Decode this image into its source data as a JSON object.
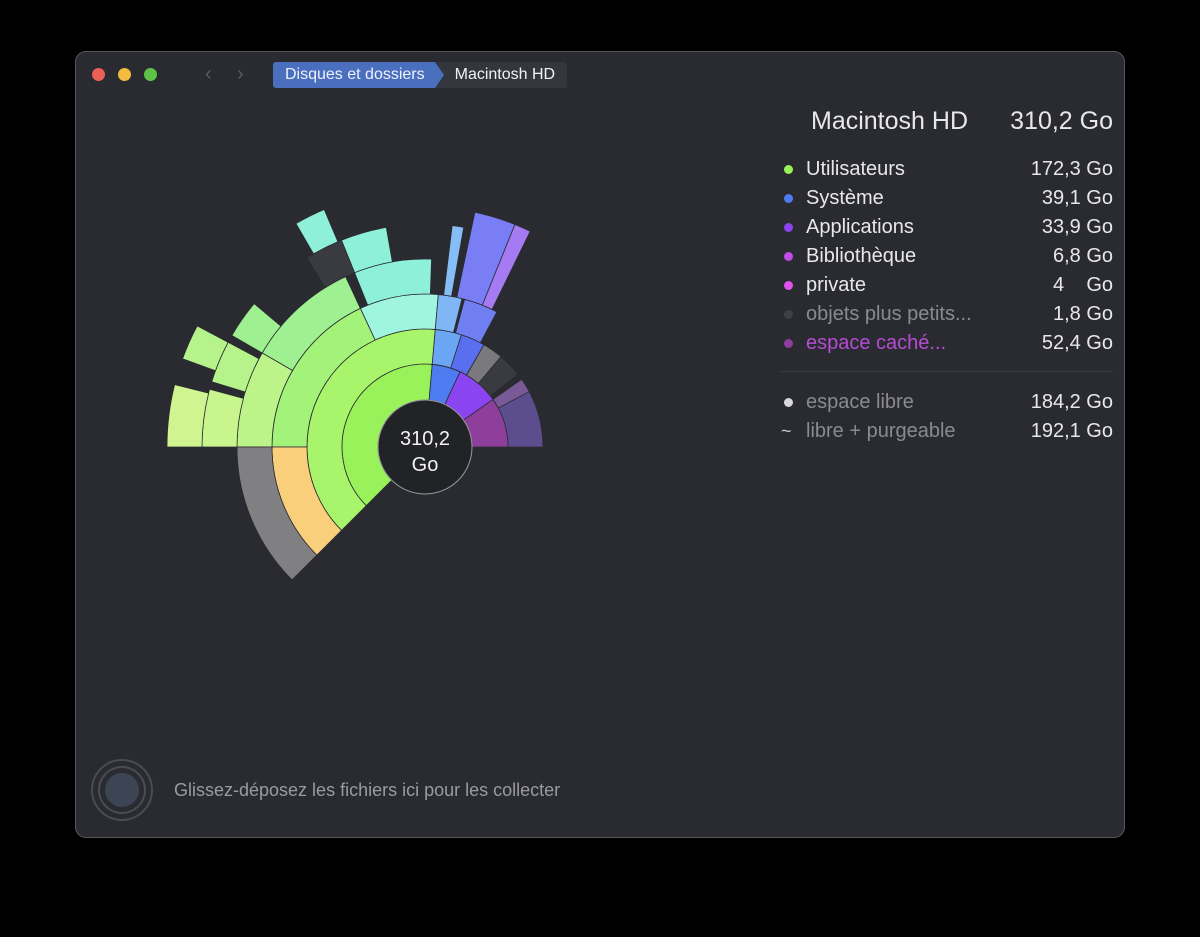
{
  "window": {
    "traffic_lights": [
      "close",
      "minimize",
      "zoom"
    ],
    "nav": {
      "back_icon": "‹",
      "forward_icon": "›"
    },
    "breadcrumb": [
      "Disques et dossiers",
      "Macintosh HD"
    ]
  },
  "legend": {
    "title": "Macintosh HD",
    "total": "310,2 Go",
    "items": [
      {
        "label": "Utilisateurs",
        "value": "172,3 Go",
        "color": "#9af25a",
        "dim": false
      },
      {
        "label": "Système",
        "value": "39,1 Go",
        "color": "#4d7cf0",
        "dim": false
      },
      {
        "label": "Applications",
        "value": "33,9 Go",
        "color": "#8a45f0",
        "dim": false
      },
      {
        "label": "Bibliothèque",
        "value": "6,8 Go",
        "color": "#c24ce6",
        "dim": false
      },
      {
        "label": "private",
        "value": "4    Go",
        "color": "#e052ee",
        "dim": false
      },
      {
        "label": "objets plus petits...",
        "value": "1,8 Go",
        "color": "#3f4046",
        "dim": true
      },
      {
        "label": "espace caché...",
        "value": "52,4 Go",
        "color": "#8e3f9c",
        "dim": false,
        "label_color": "#b44cd6"
      }
    ],
    "free": [
      {
        "label": "espace libre",
        "value": "184,2 Go",
        "marker": "dot",
        "color": "#d8d8dc"
      },
      {
        "label": "libre + purgeable",
        "value": "192,1 Go",
        "marker": "~"
      }
    ]
  },
  "center": {
    "line1": "310,2",
    "line2": "Go"
  },
  "drop_zone": {
    "text": "Glissez-déposez les fichiers ici pour les collecter"
  },
  "chart_data": {
    "type": "sunburst",
    "title": "Macintosh HD",
    "total": "310,2 Go",
    "center": [
      425,
      447
    ],
    "hole_radius": 47,
    "segments": [
      {
        "name": "Utilisateurs",
        "r0": 47,
        "r1": 83,
        "a0": 85,
        "a1": 225,
        "color": "#9af25a"
      },
      {
        "name": "Utilisateurs-2",
        "r0": 83,
        "r1": 118,
        "a0": 85,
        "a1": 225,
        "color": "#a8f46a"
      },
      {
        "name": "u3a",
        "r0": 118,
        "r1": 153,
        "a0": 85,
        "a1": 115,
        "color": "#9ff5e0"
      },
      {
        "name": "u3b",
        "r0": 118,
        "r1": 153,
        "a0": 115,
        "a1": 180,
        "color": "#a3f27a"
      },
      {
        "name": "u3c",
        "r0": 118,
        "r1": 153,
        "a0": 180,
        "a1": 225,
        "color": "#f9cf7c"
      },
      {
        "name": "u4a",
        "r0": 153,
        "r1": 188,
        "a0": 88,
        "a1": 112,
        "color": "#8ff0da"
      },
      {
        "name": "u4b",
        "r0": 153,
        "r1": 188,
        "a0": 115,
        "a1": 150,
        "color": "#9ef090"
      },
      {
        "name": "u4c",
        "r0": 153,
        "r1": 188,
        "a0": 150,
        "a1": 180,
        "color": "#bdf48a"
      },
      {
        "name": "u4d",
        "r0": 153,
        "r1": 188,
        "a0": 180,
        "a1": 225,
        "color": "#808083"
      },
      {
        "name": "u5a",
        "r0": 188,
        "r1": 223,
        "a0": 100,
        "a1": 112,
        "color": "#8ff0da"
      },
      {
        "name": "u5b",
        "r0": 188,
        "r1": 223,
        "a0": 112,
        "a1": 122,
        "color": "#3a3b40"
      },
      {
        "name": "u5c",
        "r0": 188,
        "r1": 223,
        "a0": 140,
        "a1": 150,
        "color": "#9ef090"
      },
      {
        "name": "u5d",
        "r0": 188,
        "r1": 223,
        "a0": 152,
        "a1": 163,
        "color": "#b6f38a"
      },
      {
        "name": "u5e",
        "r0": 188,
        "r1": 223,
        "a0": 165,
        "a1": 180,
        "color": "#c9f58f"
      },
      {
        "name": "u6a",
        "r0": 223,
        "r1": 258,
        "a0": 113,
        "a1": 120,
        "color": "#8ff0da"
      },
      {
        "name": "u6b",
        "r0": 223,
        "r1": 258,
        "a0": 152,
        "a1": 160,
        "color": "#b6f38a"
      },
      {
        "name": "u6c",
        "r0": 223,
        "r1": 258,
        "a0": 166,
        "a1": 180,
        "color": "#d0f590"
      },
      {
        "name": "Système",
        "r0": 47,
        "r1": 83,
        "a0": 65,
        "a1": 85,
        "color": "#4d7cf0"
      },
      {
        "name": "sys2a",
        "r0": 83,
        "r1": 118,
        "a0": 72,
        "a1": 85,
        "color": "#6aa6f4"
      },
      {
        "name": "sys2b",
        "r0": 83,
        "r1": 118,
        "a0": 60,
        "a1": 72,
        "color": "#5a6ef0"
      },
      {
        "name": "sys3a",
        "r0": 118,
        "r1": 153,
        "a0": 76,
        "a1": 85,
        "color": "#7eb6f6"
      },
      {
        "name": "sys3b",
        "r0": 118,
        "r1": 153,
        "a0": 62,
        "a1": 75,
        "color": "#6f7ff2"
      },
      {
        "name": "sys4a",
        "r0": 153,
        "r1": 223,
        "a0": 80,
        "a1": 83,
        "color": "#86bdf7"
      },
      {
        "name": "sys4b",
        "r0": 153,
        "r1": 240,
        "a0": 68,
        "a1": 78,
        "color": "#7a7ef4"
      },
      {
        "name": "sys4c",
        "r0": 153,
        "r1": 240,
        "a0": 64,
        "a1": 68,
        "color": "#a67af2"
      },
      {
        "name": "Applications",
        "r0": 47,
        "r1": 83,
        "a0": 35,
        "a1": 65,
        "color": "#8a45f0"
      },
      {
        "name": "app2",
        "r0": 83,
        "r1": 118,
        "a0": 38,
        "a1": 60,
        "color": "#3a3b40"
      },
      {
        "name": "app2g",
        "r0": 83,
        "r1": 118,
        "a0": 50,
        "a1": 60,
        "color": "#7a7a7e"
      },
      {
        "name": "caché",
        "r0": 47,
        "r1": 83,
        "a0": 0,
        "a1": 35,
        "color": "#8e3f9c"
      },
      {
        "name": "caché2",
        "r0": 83,
        "r1": 118,
        "a0": 0,
        "a1": 35,
        "color": "#5c4e8e"
      },
      {
        "name": "caché3",
        "r0": 83,
        "r1": 118,
        "a0": 28,
        "a1": 35,
        "color": "#7a5a96"
      }
    ]
  }
}
